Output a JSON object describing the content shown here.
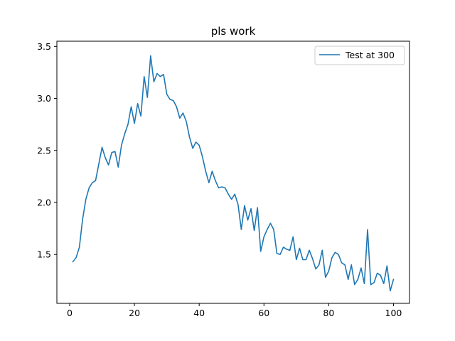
{
  "chart_data": {
    "type": "line",
    "title": "pls work",
    "xlabel": "",
    "ylabel": "",
    "xlim": [
      -3.95,
      104.95
    ],
    "ylim": [
      1.03,
      3.55
    ],
    "x_ticks": [
      0,
      20,
      40,
      60,
      80,
      100
    ],
    "x_tick_labels": [
      "0",
      "20",
      "40",
      "60",
      "80",
      "100"
    ],
    "y_ticks": [
      1.5,
      2.0,
      2.5,
      3.0,
      3.5
    ],
    "y_tick_labels": [
      "1.5",
      "2.0",
      "2.5",
      "3.0",
      "3.5"
    ],
    "grid": false,
    "legend_position": "top-right",
    "colors": {
      "series": "#1f77b4",
      "axes": "#000000",
      "legend_border": "#cccccc"
    },
    "series": [
      {
        "name": "Test at 300",
        "x": [
          1,
          2,
          3,
          4,
          5,
          6,
          7,
          8,
          9,
          10,
          11,
          12,
          13,
          14,
          15,
          16,
          17,
          18,
          19,
          20,
          21,
          22,
          23,
          24,
          25,
          26,
          27,
          28,
          29,
          30,
          31,
          32,
          33,
          34,
          35,
          36,
          37,
          38,
          39,
          40,
          41,
          42,
          43,
          44,
          45,
          46,
          47,
          48,
          49,
          50,
          51,
          52,
          53,
          54,
          55,
          56,
          57,
          58,
          59,
          60,
          61,
          62,
          63,
          64,
          65,
          66,
          67,
          68,
          69,
          70,
          71,
          72,
          73,
          74,
          75,
          76,
          77,
          78,
          79,
          80,
          81,
          82,
          83,
          84,
          85,
          86,
          87,
          88,
          89,
          90,
          91,
          92,
          93,
          94,
          95,
          96,
          97,
          98,
          99,
          100
        ],
        "y": [
          1.43,
          1.47,
          1.57,
          1.84,
          2.03,
          2.14,
          2.19,
          2.21,
          2.37,
          2.53,
          2.43,
          2.36,
          2.48,
          2.49,
          2.34,
          2.55,
          2.66,
          2.75,
          2.92,
          2.76,
          2.95,
          2.83,
          3.21,
          3.01,
          3.41,
          3.16,
          3.24,
          3.21,
          3.23,
          3.04,
          2.99,
          2.98,
          2.92,
          2.81,
          2.86,
          2.78,
          2.63,
          2.52,
          2.58,
          2.55,
          2.44,
          2.3,
          2.19,
          2.3,
          2.21,
          2.14,
          2.15,
          2.14,
          2.08,
          2.03,
          2.08,
          1.98,
          1.74,
          1.97,
          1.83,
          1.94,
          1.73,
          1.95,
          1.53,
          1.67,
          1.74,
          1.8,
          1.74,
          1.51,
          1.5,
          1.57,
          1.55,
          1.54,
          1.67,
          1.45,
          1.56,
          1.45,
          1.45,
          1.54,
          1.46,
          1.36,
          1.4,
          1.54,
          1.28,
          1.34,
          1.47,
          1.52,
          1.5,
          1.42,
          1.4,
          1.26,
          1.4,
          1.21,
          1.26,
          1.37,
          1.22,
          1.74,
          1.21,
          1.23,
          1.32,
          1.3,
          1.22,
          1.39,
          1.15,
          1.26
        ]
      }
    ]
  }
}
